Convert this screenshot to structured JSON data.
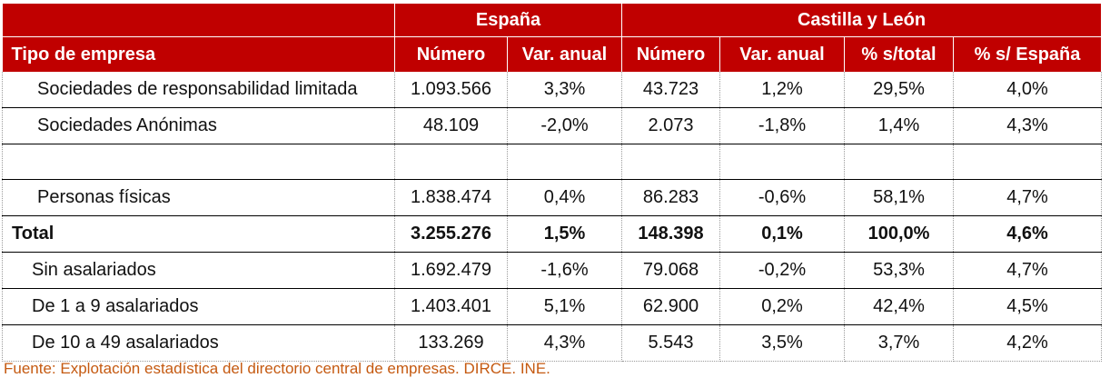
{
  "header": {
    "group_spain": "España",
    "group_cyl": "Castilla y León",
    "col_tipo": "Tipo de empresa",
    "col_num_es": "Número",
    "col_var_es": "Var. anual",
    "col_num_cyl": "Número",
    "col_var_cyl": "Var. anual",
    "col_pct_total": "% s/total",
    "col_pct_es": "% s/ España"
  },
  "rows": [
    {
      "label": "Sociedades de responsabilidad limitada",
      "num_es": "1.093.566",
      "var_es": "3,3%",
      "num_cyl": "43.723",
      "var_cyl": "1,2%",
      "pct_total": "29,5%",
      "pct_es": "4,0%"
    },
    {
      "label": "Sociedades Anónimas",
      "num_es": "48.109",
      "var_es": "-2,0%",
      "num_cyl": "2.073",
      "var_cyl": "-1,8%",
      "pct_total": "1,4%",
      "pct_es": "4,3%"
    },
    {
      "label": "",
      "num_es": "",
      "var_es": "",
      "num_cyl": "",
      "var_cyl": "",
      "pct_total": "",
      "pct_es": ""
    },
    {
      "label": "Personas físicas",
      "num_es": "1.838.474",
      "var_es": "0,4%",
      "num_cyl": "86.283",
      "var_cyl": "-0,6%",
      "pct_total": "58,1%",
      "pct_es": "4,7%"
    },
    {
      "label": "Total",
      "num_es": "3.255.276",
      "var_es": "1,5%",
      "num_cyl": "148.398",
      "var_cyl": "0,1%",
      "pct_total": "100,0%",
      "pct_es": "4,6%"
    },
    {
      "label": "Sin asalariados",
      "num_es": "1.692.479",
      "var_es": "-1,6%",
      "num_cyl": "79.068",
      "var_cyl": "-0,2%",
      "pct_total": "53,3%",
      "pct_es": "4,7%"
    },
    {
      "label": "De 1 a 9 asalariados",
      "num_es": "1.403.401",
      "var_es": "5,1%",
      "num_cyl": "62.900",
      "var_cyl": "0,2%",
      "pct_total": "42,4%",
      "pct_es": "4,5%"
    },
    {
      "label": "De 10 a 49 asalariados",
      "num_es": "133.269",
      "var_es": "4,3%",
      "num_cyl": "5.543",
      "var_cyl": "3,5%",
      "pct_total": "3,7%",
      "pct_es": "4,2%"
    }
  ],
  "source": "Fuente: Explotación estadística del directorio central de empresas. DIRCE. INE.",
  "colors": {
    "header_bg": "#c00000",
    "source_text": "#c55a11"
  }
}
